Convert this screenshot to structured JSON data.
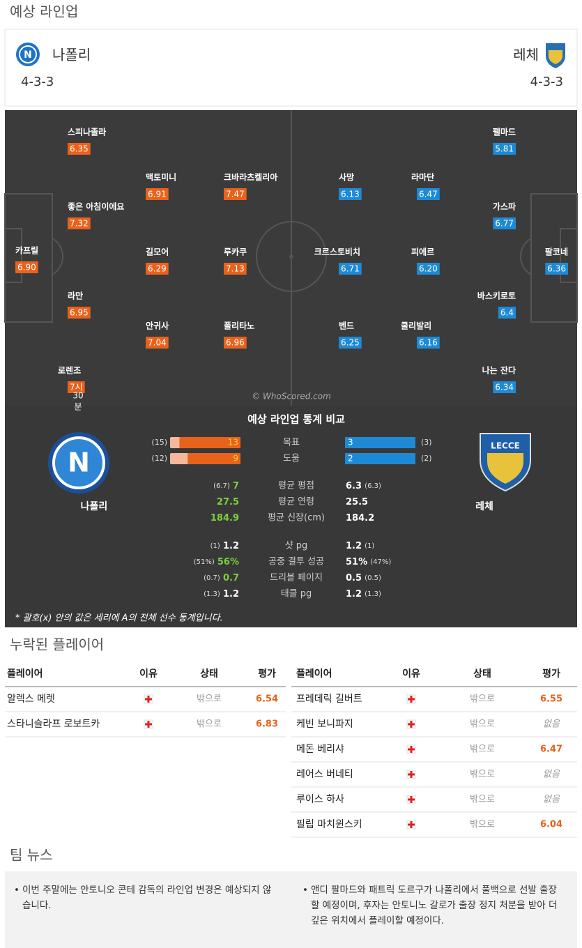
{
  "section_title": "예상 라인업",
  "home": {
    "name": "나폴리",
    "formation": "4-3-3",
    "players": [
      {
        "name": "카프릴",
        "rating": "6.90"
      },
      {
        "name": "스피나졸라",
        "rating": "6.35"
      },
      {
        "name": "좋은 아침이에요",
        "rating": "7.32"
      },
      {
        "name": "라만",
        "rating": "6.95"
      },
      {
        "name": "로렌조",
        "rating": "7시",
        "extra": [
          "30",
          "분"
        ]
      },
      {
        "name": "맥토미니",
        "rating": "6.91"
      },
      {
        "name": "크바라츠켈리아",
        "rating": "7.47"
      },
      {
        "name": "길모어",
        "rating": "6.29"
      },
      {
        "name": "루카쿠",
        "rating": "7.13"
      },
      {
        "name": "안귀사",
        "rating": "7.04"
      },
      {
        "name": "폴리타노",
        "rating": "6.96"
      }
    ]
  },
  "away": {
    "name": "레체",
    "formation": "4-3-3",
    "players": [
      {
        "name": "펠마드",
        "rating": "5.81"
      },
      {
        "name": "사망",
        "rating": "6.13"
      },
      {
        "name": "라마단",
        "rating": "6.47"
      },
      {
        "name": "가스파",
        "rating": "6.77"
      },
      {
        "name": "크르스토비치",
        "rating": "6.71"
      },
      {
        "name": "피에르",
        "rating": "6.20"
      },
      {
        "name": "팔코네",
        "rating": "6.36"
      },
      {
        "name": "바스키로토",
        "rating": "6.4"
      },
      {
        "name": "벤드",
        "rating": "6.25"
      },
      {
        "name": "쿨리발리",
        "rating": "6.16"
      },
      {
        "name": "나는 잔다",
        "rating": "6.34"
      }
    ]
  },
  "watermark": "© WhoScored.com",
  "stats": {
    "title": "예상 라인업 통계 비교",
    "bars": [
      {
        "label": "목표",
        "home": 13,
        "home_season": 15,
        "home_season_label": "(15)",
        "away": 3,
        "away_season": 3,
        "away_season_label": "(3)"
      },
      {
        "label": "도움",
        "home": 9,
        "home_season": 12,
        "home_season_label": "(12)",
        "away": 2,
        "away_season": 2,
        "away_season_label": "(2)"
      }
    ],
    "rows": [
      {
        "label": "평균 평점",
        "home": "7",
        "home_league": "(6.7)",
        "away": "6.3",
        "away_league": "(6.3)",
        "home_color": "#7ccf3f"
      },
      {
        "label": "평균 연령",
        "home": "27.5",
        "away": "25.5",
        "home_color": "#7ccf3f"
      },
      {
        "label": "평균 신장(cm)",
        "home": "184.9",
        "away": "184.2",
        "home_color": "#7ccf3f"
      },
      {
        "label": "샷 pg",
        "home": "1.2",
        "home_league": "(1)",
        "away": "1.2",
        "away_league": "(1)",
        "home_color": "#ffffff"
      },
      {
        "label": "공중 결투 성공",
        "home": "56%",
        "home_league": "(51%)",
        "away": "51%",
        "away_league": "(47%)",
        "home_color": "#7ccf3f"
      },
      {
        "label": "드리블 페이지",
        "home": "0.7",
        "home_league": "(0.7)",
        "away": "0.5",
        "away_league": "(0.5)",
        "home_color": "#7ccf3f"
      },
      {
        "label": "태클 pg",
        "home": "1.2",
        "home_league": "(1.3)",
        "away": "1.2",
        "away_league": "(1.3)",
        "home_color": "#ffffff"
      }
    ],
    "note": "* 괄호(x) 안의 값은 세리에 A의 전체 선수 통계입니다."
  },
  "missing": {
    "title": "누락된 플레이어",
    "headers": [
      "플레이어",
      "이유",
      "상태",
      "평가"
    ],
    "home": [
      [
        "알렉스 메렛",
        "밖으로",
        "6.54"
      ],
      [
        "스타니슬라프 로보트카",
        "밖으로",
        "6.83"
      ]
    ],
    "away": [
      [
        "프레데릭 길버트",
        "밖으로",
        "6.55"
      ],
      [
        "케빈 보니파지",
        "밖으로",
        "없음"
      ],
      [
        "메돈 베리샤",
        "밖으로",
        "6.47"
      ],
      [
        "레어스 버네티",
        "밖으로",
        "없음"
      ],
      [
        "루이스 하사",
        "밖으로",
        "없음"
      ],
      [
        "필립 마치윈스키",
        "밖으로",
        "6.04"
      ]
    ]
  },
  "news": {
    "title": "팀 뉴스",
    "items": [
      "이번 주말에는 안토니오 콘테 감독의 라인업 변경은 예상되지 않습니다.",
      "앤디 팔마드와 패트릭 도르구가 나폴리에서 풀백으로 선발 출장할 예정이며, 후자는 안토니노 갈로가 출장 정지 처분을 받아 더 깊은 위치에서 플레이할 예정이다."
    ]
  }
}
